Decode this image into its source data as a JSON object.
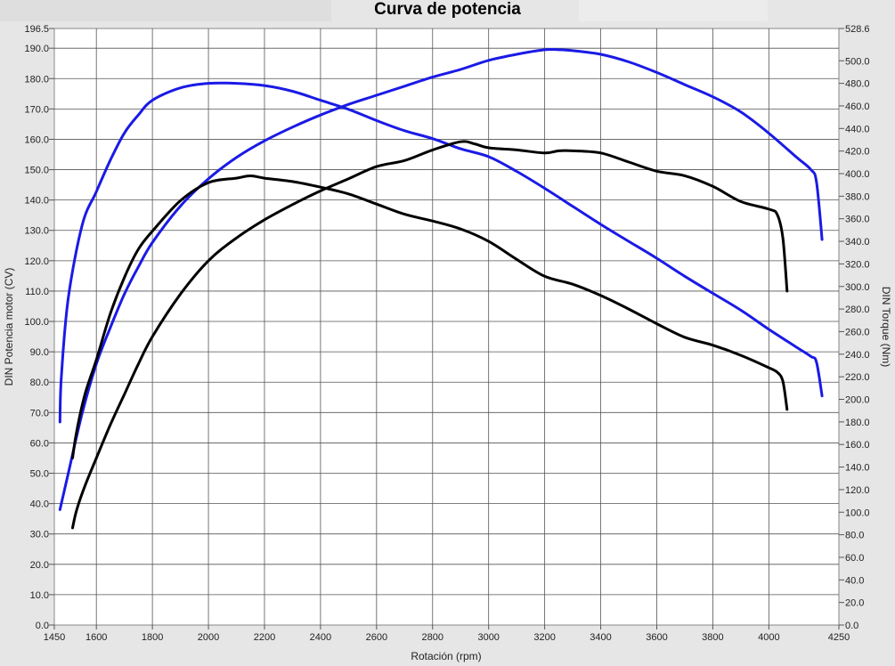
{
  "chart_data": {
    "type": "line",
    "title": "Curva de potencia",
    "xlabel": "Rotación (rpm)",
    "ylabel_left": "DIN Potencia motor (CV)",
    "ylabel_right": "DIN Torque (Nm)",
    "xlim": [
      1450,
      4250
    ],
    "ylim_left": [
      0.0,
      196.5
    ],
    "ylim_right": [
      0.0,
      528.6
    ],
    "x_ticks": [
      "1450",
      "1600",
      "1800",
      "2000",
      "2200",
      "2400",
      "2600",
      "2800",
      "3000",
      "3200",
      "3400",
      "3600",
      "3800",
      "4000",
      "4250"
    ],
    "y_left_ticks": [
      "0.0",
      "10.0",
      "20.0",
      "30.0",
      "40.0",
      "50.0",
      "60.0",
      "70.0",
      "80.0",
      "90.0",
      "100.0",
      "110.0",
      "120.0",
      "130.0",
      "140.0",
      "150.0",
      "160.0",
      "170.0",
      "180.0",
      "190.0",
      "196.5"
    ],
    "y_right_ticks": [
      "0.0",
      "20.0",
      "40.0",
      "60.0",
      "80.0",
      "100.0",
      "120.0",
      "140.0",
      "160.0",
      "180.0",
      "200.0",
      "220.0",
      "240.0",
      "260.0",
      "280.0",
      "300.0",
      "320.0",
      "340.0",
      "360.0",
      "380.0",
      "400.0",
      "420.0",
      "440.0",
      "460.0",
      "480.0",
      "500.0",
      "528.6"
    ],
    "grid": true,
    "series": [
      {
        "color": "#1a1ae6",
        "axis": "left",
        "x": [
          1470,
          1500,
          1550,
          1600,
          1650,
          1700,
          1750,
          1800,
          1900,
          2000,
          2100,
          2200,
          2300,
          2400,
          2500,
          2600,
          2700,
          2800,
          2900,
          3000,
          3100,
          3200,
          3250,
          3300,
          3400,
          3500,
          3600,
          3700,
          3800,
          3900,
          4000,
          4100,
          4150,
          4170,
          4190
        ],
        "y": [
          38,
          50,
          70,
          86,
          98,
          109,
          118,
          126,
          138,
          147,
          154,
          159.5,
          164,
          168,
          171.5,
          174.5,
          177.5,
          180.5,
          183,
          186,
          188,
          189.5,
          189.5,
          189.2,
          188,
          185.5,
          182,
          178,
          174,
          169,
          162,
          154,
          150,
          146,
          127
        ]
      },
      {
        "color": "#1a1ae6",
        "axis": "right",
        "x": [
          1470,
          1475,
          1500,
          1550,
          1600,
          1650,
          1700,
          1750,
          1800,
          1900,
          2000,
          2100,
          2200,
          2300,
          2400,
          2500,
          2600,
          2700,
          2800,
          2900,
          3000,
          3100,
          3200,
          3300,
          3400,
          3500,
          3600,
          3700,
          3800,
          3900,
          4000,
          4100,
          4150,
          4170,
          4190
        ],
        "y": [
          180,
          220,
          290,
          355,
          384,
          412,
          436,
          452,
          465,
          476,
          480,
          480,
          478,
          473,
          465,
          457,
          447,
          438,
          431,
          422,
          415,
          402,
          387,
          371,
          355,
          340,
          325,
          309,
          294,
          279,
          262,
          246,
          238,
          233,
          203
        ]
      },
      {
        "color": "#000000",
        "axis": "left",
        "x": [
          1515,
          1530,
          1560,
          1600,
          1650,
          1700,
          1750,
          1800,
          1900,
          2000,
          2100,
          2200,
          2300,
          2400,
          2500,
          2600,
          2700,
          2800,
          2900,
          2950,
          3000,
          3100,
          3200,
          3250,
          3300,
          3400,
          3500,
          3600,
          3700,
          3800,
          3900,
          4000,
          4030,
          4050,
          4065
        ],
        "y": [
          32,
          38,
          46,
          55,
          66,
          76,
          86,
          95,
          109,
          120,
          127.5,
          133.5,
          138.5,
          143,
          147,
          151,
          153,
          156.5,
          159.2,
          158.5,
          157.2,
          156.5,
          155.5,
          156.2,
          156.2,
          155.5,
          152.5,
          149.5,
          148,
          144.5,
          139.5,
          137,
          135.2,
          127.5,
          110
        ]
      },
      {
        "color": "#000000",
        "axis": "right",
        "x": [
          1515,
          1530,
          1560,
          1600,
          1650,
          1700,
          1750,
          1800,
          1900,
          2000,
          2100,
          2150,
          2200,
          2300,
          2400,
          2500,
          2600,
          2700,
          2800,
          2900,
          3000,
          3100,
          3200,
          3300,
          3400,
          3500,
          3600,
          3700,
          3800,
          3900,
          4000,
          4030,
          4050,
          4065
        ],
        "y": [
          148,
          172,
          205,
          235,
          276,
          308,
          333,
          349,
          376,
          392,
          396,
          398,
          396,
          393,
          388,
          382,
          373,
          364,
          358,
          351,
          340,
          324,
          309,
          302,
          292,
          280,
          267,
          255,
          248,
          239,
          228,
          224,
          216,
          191
        ]
      }
    ]
  }
}
